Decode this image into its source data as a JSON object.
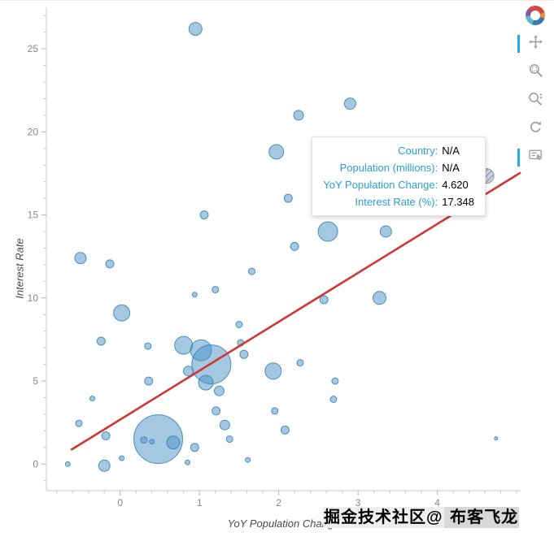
{
  "figure": {
    "accent_color": "#26aae1",
    "bubble_fill": "#4a92c4",
    "bubble_stroke": "#3280b5",
    "trend_color": "#cf3630",
    "axis_color": "#c8c8c8",
    "tick_label_color": "#878787"
  },
  "chart_data": {
    "type": "scatter",
    "title": "",
    "xlabel": "YoY Population Change",
    "ylabel": "Interest Rate",
    "xlim": [
      -0.93,
      5.05
    ],
    "ylim": [
      -1.6,
      27.5
    ],
    "x_ticks": [
      0,
      1,
      2,
      3,
      4
    ],
    "y_ticks": [
      0,
      5,
      10,
      15,
      20,
      25
    ],
    "x_minor_step": 0.2,
    "y_minor_step": 1,
    "grid": false,
    "legend": "none",
    "points": [
      [
        0.95,
        26.2,
        8
      ],
      [
        2.9,
        21.7,
        7
      ],
      [
        2.25,
        21.0,
        6
      ],
      [
        1.97,
        18.8,
        9
      ],
      [
        2.12,
        16.0,
        5
      ],
      [
        1.06,
        15.0,
        5
      ],
      [
        2.62,
        14.0,
        12
      ],
      [
        3.35,
        14.0,
        7
      ],
      [
        2.2,
        13.1,
        5
      ],
      [
        -0.5,
        12.4,
        7
      ],
      [
        -0.13,
        12.05,
        5
      ],
      [
        1.66,
        11.6,
        4
      ],
      [
        1.2,
        10.5,
        4
      ],
      [
        0.94,
        10.2,
        3
      ],
      [
        3.27,
        10.0,
        8
      ],
      [
        2.57,
        9.9,
        5
      ],
      [
        0.02,
        9.1,
        10
      ],
      [
        1.5,
        8.4,
        4
      ],
      [
        1.52,
        7.3,
        4
      ],
      [
        -0.24,
        7.4,
        5
      ],
      [
        0.8,
        7.15,
        11
      ],
      [
        0.35,
        7.1,
        4
      ],
      [
        1.02,
        6.85,
        13
      ],
      [
        1.15,
        6.0,
        24
      ],
      [
        1.56,
        6.6,
        5
      ],
      [
        2.27,
        6.1,
        4
      ],
      [
        1.93,
        5.6,
        10
      ],
      [
        0.86,
        5.6,
        6
      ],
      [
        1.08,
        4.9,
        9
      ],
      [
        1.25,
        4.4,
        6
      ],
      [
        2.71,
        5.0,
        4
      ],
      [
        0.36,
        5.0,
        5
      ],
      [
        2.69,
        3.9,
        4
      ],
      [
        -0.35,
        3.95,
        3
      ],
      [
        1.21,
        3.2,
        5
      ],
      [
        1.95,
        3.2,
        4
      ],
      [
        -0.52,
        2.45,
        4
      ],
      [
        1.32,
        2.35,
        6
      ],
      [
        2.08,
        2.05,
        5
      ],
      [
        -0.18,
        1.7,
        5
      ],
      [
        0.48,
        1.5,
        30
      ],
      [
        0.3,
        1.45,
        4
      ],
      [
        0.4,
        1.35,
        3
      ],
      [
        0.67,
        1.3,
        8
      ],
      [
        0.94,
        1.0,
        5
      ],
      [
        1.38,
        1.5,
        4
      ],
      [
        4.74,
        1.55,
        2
      ],
      [
        1.61,
        0.25,
        3
      ],
      [
        -0.2,
        -0.1,
        7
      ],
      [
        -0.66,
        0.0,
        3
      ],
      [
        0.02,
        0.35,
        3
      ],
      [
        0.85,
        0.1,
        3
      ]
    ],
    "trend_line": {
      "x0": -0.62,
      "y0": 0.85,
      "x1": 5.05,
      "y1": 17.55
    },
    "hovered_point": {
      "x": 4.62,
      "y": 17.348,
      "r": 9
    }
  },
  "tooltip": {
    "label_color": "#2a9fd6",
    "rows": [
      {
        "label": "Country:",
        "value": "N/A"
      },
      {
        "label": "Population (millions):",
        "value": "N/A"
      },
      {
        "label": "YoY Population Change:",
        "value": "4.620"
      },
      {
        "label": "Interest Rate (%):",
        "value": "17.348"
      }
    ]
  },
  "toolbar": {
    "icons": [
      {
        "name": "bokeh-logo",
        "active": false
      },
      {
        "name": "pan-icon",
        "active": true
      },
      {
        "name": "box-zoom-icon",
        "active": false
      },
      {
        "name": "wheel-zoom-icon",
        "active": false
      },
      {
        "name": "reset-icon",
        "active": false
      },
      {
        "name": "hover-icon",
        "active": true
      }
    ]
  },
  "watermark": {
    "part1": "掘金技术社区@",
    "part2": " 布客飞龙"
  }
}
